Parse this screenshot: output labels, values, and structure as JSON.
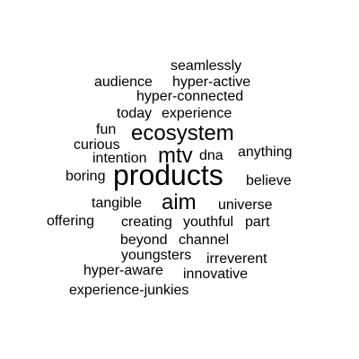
{
  "cloud": {
    "text_color": "#000000",
    "background": "#ffffff",
    "words": [
      {
        "text": "seamlessly",
        "weight": 2
      },
      {
        "text": "audience",
        "weight": 2
      },
      {
        "text": "hyper-active",
        "weight": 2
      },
      {
        "text": "hyper-connected",
        "weight": 2
      },
      {
        "text": "today",
        "weight": 2
      },
      {
        "text": "experience",
        "weight": 2
      },
      {
        "text": "fun",
        "weight": 2
      },
      {
        "text": "ecosystem",
        "weight": 3
      },
      {
        "text": "curious",
        "weight": 2
      },
      {
        "text": "anything",
        "weight": 2
      },
      {
        "text": "intention",
        "weight": 2
      },
      {
        "text": "mtv",
        "weight": 3
      },
      {
        "text": "dna",
        "weight": 2
      },
      {
        "text": "boring",
        "weight": 2
      },
      {
        "text": "products",
        "weight": 4
      },
      {
        "text": "believe",
        "weight": 2
      },
      {
        "text": "tangible",
        "weight": 2
      },
      {
        "text": "aim",
        "weight": 3
      },
      {
        "text": "universe",
        "weight": 2
      },
      {
        "text": "offering",
        "weight": 2
      },
      {
        "text": "creating",
        "weight": 2
      },
      {
        "text": "youthful",
        "weight": 2
      },
      {
        "text": "part",
        "weight": 2
      },
      {
        "text": "beyond",
        "weight": 2
      },
      {
        "text": "channel",
        "weight": 2
      },
      {
        "text": "youngsters",
        "weight": 2
      },
      {
        "text": "irreverent",
        "weight": 2
      },
      {
        "text": "hyper-aware",
        "weight": 2
      },
      {
        "text": "innovative",
        "weight": 2
      },
      {
        "text": "experience-junkies",
        "weight": 2
      }
    ]
  }
}
